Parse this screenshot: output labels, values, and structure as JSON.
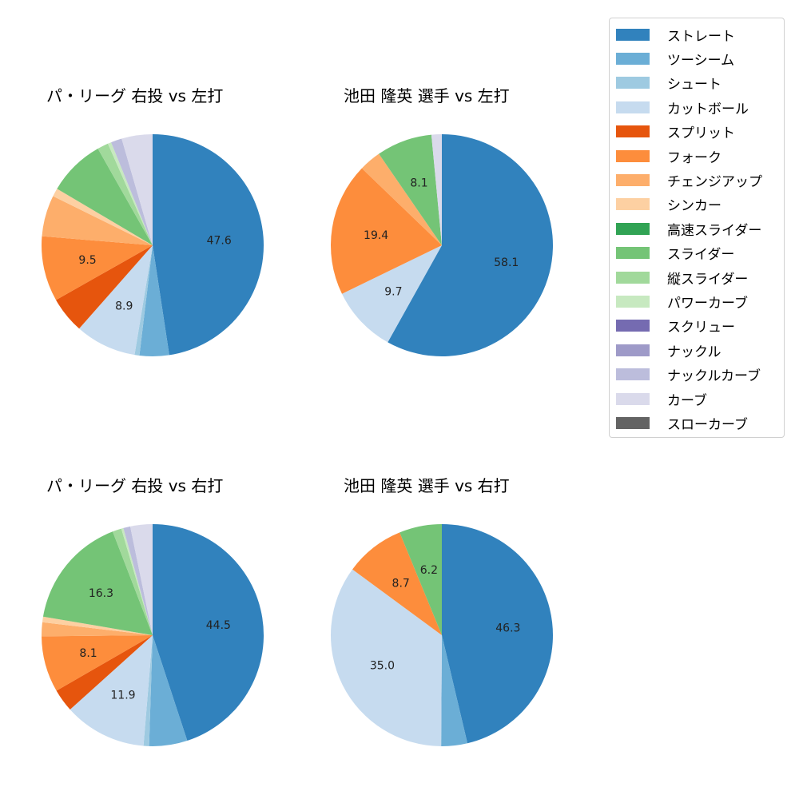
{
  "legend": {
    "items": [
      {
        "label": "ストレート",
        "color": "#3182bd"
      },
      {
        "label": "ツーシーム",
        "color": "#6baed6"
      },
      {
        "label": "シュート",
        "color": "#9ecae1"
      },
      {
        "label": "カットボール",
        "color": "#c6dbef"
      },
      {
        "label": "スプリット",
        "color": "#e6550d"
      },
      {
        "label": "フォーク",
        "color": "#fd8d3c"
      },
      {
        "label": "チェンジアップ",
        "color": "#fdae6b"
      },
      {
        "label": "シンカー",
        "color": "#fdd0a2"
      },
      {
        "label": "高速スライダー",
        "color": "#31a354"
      },
      {
        "label": "スライダー",
        "color": "#74c476"
      },
      {
        "label": "縦スライダー",
        "color": "#a1d99b"
      },
      {
        "label": "パワーカーブ",
        "color": "#c7e9c0"
      },
      {
        "label": "スクリュー",
        "color": "#756bb1"
      },
      {
        "label": "ナックル",
        "color": "#9e9ac8"
      },
      {
        "label": "ナックルカーブ",
        "color": "#bcbddc"
      },
      {
        "label": "カーブ",
        "color": "#dadaeb"
      },
      {
        "label": "スローカーブ",
        "color": "#636363"
      }
    ]
  },
  "chart_data": [
    {
      "type": "pie",
      "title": "パ・リーグ 右投 vs 左打",
      "categories": [
        "ストレート",
        "ツーシーム",
        "シュート",
        "カットボール",
        "スプリット",
        "フォーク",
        "チェンジアップ",
        "シンカー",
        "スライダー",
        "縦スライダー",
        "パワーカーブ",
        "ナックルカーブ",
        "カーブ"
      ],
      "values": [
        47.6,
        4.3,
        0.7,
        8.9,
        5.3,
        9.5,
        6.0,
        1.2,
        8.3,
        1.6,
        0.5,
        1.6,
        4.5
      ],
      "labels_shown": [
        "47.6",
        "",
        "",
        "8.9",
        "",
        "9.5",
        "",
        "",
        "",
        "",
        "",
        "",
        ""
      ],
      "start_angle": 90,
      "direction": "clockwise"
    },
    {
      "type": "pie",
      "title": "池田 隆英 選手 vs 左打",
      "categories": [
        "ストレート",
        "カットボール",
        "フォーク",
        "チェンジアップ",
        "スライダー",
        "カーブ"
      ],
      "values": [
        58.1,
        9.7,
        19.4,
        3.2,
        8.1,
        1.5
      ],
      "labels_shown": [
        "58.1",
        "9.7",
        "19.4",
        "",
        "8.1",
        ""
      ],
      "start_angle": 90,
      "direction": "clockwise"
    },
    {
      "type": "pie",
      "title": "パ・リーグ 右投 vs 右打",
      "categories": [
        "ストレート",
        "ツーシーム",
        "シュート",
        "カットボール",
        "スプリット",
        "フォーク",
        "チェンジアップ",
        "シンカー",
        "スライダー",
        "縦スライダー",
        "パワーカーブ",
        "ナックルカーブ",
        "カーブ"
      ],
      "values": [
        44.5,
        5.5,
        0.8,
        11.9,
        3.3,
        8.1,
        2.0,
        0.8,
        16.3,
        1.3,
        0.3,
        1.0,
        3.2
      ],
      "labels_shown": [
        "44.5",
        "",
        "",
        "11.9",
        "",
        "8.1",
        "",
        "",
        "16.3",
        "",
        "",
        "",
        ""
      ],
      "start_angle": 90,
      "direction": "clockwise"
    },
    {
      "type": "pie",
      "title": "池田 隆英 選手 vs 右打",
      "categories": [
        "ストレート",
        "ツーシーム",
        "カットボール",
        "フォーク",
        "スライダー"
      ],
      "values": [
        46.3,
        3.8,
        35.0,
        8.7,
        6.2
      ],
      "labels_shown": [
        "46.3",
        "",
        "35.0",
        "8.7",
        "6.2"
      ],
      "start_angle": 90,
      "direction": "clockwise"
    }
  ]
}
